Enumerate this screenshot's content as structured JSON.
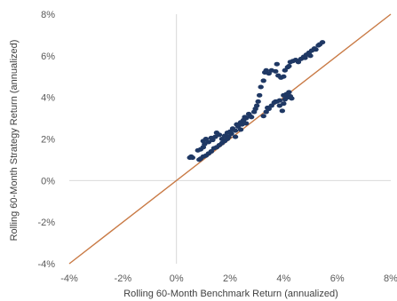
{
  "chart_data": {
    "type": "scatter",
    "title": "",
    "xlabel": "Rolling 60-Month Benchmark Return (annualized)",
    "ylabel": "Rolling 60-Month Strategy Return (annualized)",
    "xlim": [
      -4,
      8
    ],
    "ylim": [
      -4,
      8
    ],
    "x_ticks": [
      "-4%",
      "-2%",
      "0%",
      "2%",
      "4%",
      "6%",
      "8%"
    ],
    "y_ticks": [
      "-4%",
      "-2%",
      "0%",
      "2%",
      "4%",
      "6%",
      "8%"
    ],
    "grid": false,
    "legend": "none",
    "reference_line": {
      "from": [
        -4,
        -4
      ],
      "to": [
        8,
        8
      ],
      "color": "#C97A45"
    },
    "colors": {
      "points": "#1F3864",
      "reference_line": "#C97A45",
      "zero_axis": "#D9D9D9",
      "tick_text": "#595959"
    },
    "series": [
      {
        "points": [
          [
            0.5,
            1.1
          ],
          [
            0.55,
            1.15
          ],
          [
            0.6,
            1.1
          ],
          [
            0.8,
            1.45
          ],
          [
            0.9,
            1.5
          ],
          [
            1.0,
            1.6
          ],
          [
            1.05,
            1.75
          ],
          [
            0.85,
            1.0
          ],
          [
            0.9,
            1.05
          ],
          [
            1.0,
            1.15
          ],
          [
            1.1,
            1.2
          ],
          [
            1.2,
            1.3
          ],
          [
            1.3,
            1.4
          ],
          [
            1.4,
            1.55
          ],
          [
            1.5,
            1.6
          ],
          [
            1.6,
            1.7
          ],
          [
            1.7,
            1.8
          ],
          [
            1.8,
            1.9
          ],
          [
            1.9,
            2.0
          ],
          [
            1.0,
            1.9
          ],
          [
            1.1,
            2.0
          ],
          [
            1.2,
            1.85
          ],
          [
            1.3,
            2.05
          ],
          [
            1.35,
            1.95
          ],
          [
            1.45,
            2.1
          ],
          [
            1.5,
            2.3
          ],
          [
            1.6,
            2.2
          ],
          [
            1.7,
            2.0
          ],
          [
            1.8,
            2.15
          ],
          [
            1.9,
            2.3
          ],
          [
            1.95,
            2.1
          ],
          [
            2.0,
            2.35
          ],
          [
            2.05,
            2.25
          ],
          [
            2.1,
            2.5
          ],
          [
            2.2,
            2.4
          ],
          [
            2.25,
            2.7
          ],
          [
            2.3,
            2.6
          ],
          [
            2.4,
            2.8
          ],
          [
            2.45,
            2.7
          ],
          [
            2.5,
            2.9
          ],
          [
            2.55,
            3.05
          ],
          [
            2.6,
            3.0
          ],
          [
            2.7,
            3.2
          ],
          [
            2.75,
            3.1
          ],
          [
            2.2,
            2.1
          ],
          [
            2.4,
            2.45
          ],
          [
            2.6,
            2.75
          ],
          [
            2.8,
            3.05
          ],
          [
            2.9,
            3.3
          ],
          [
            2.95,
            3.45
          ],
          [
            3.0,
            3.6
          ],
          [
            3.05,
            3.8
          ],
          [
            3.1,
            4.1
          ],
          [
            3.15,
            4.5
          ],
          [
            3.25,
            4.8
          ],
          [
            3.3,
            5.2
          ],
          [
            3.35,
            5.3
          ],
          [
            3.45,
            5.15
          ],
          [
            3.55,
            5.3
          ],
          [
            3.7,
            5.25
          ],
          [
            3.75,
            5.6
          ],
          [
            3.8,
            5.05
          ],
          [
            3.9,
            4.95
          ],
          [
            4.0,
            5.0
          ],
          [
            4.05,
            5.3
          ],
          [
            4.15,
            5.45
          ],
          [
            4.2,
            5.5
          ],
          [
            3.25,
            3.1
          ],
          [
            3.35,
            3.3
          ],
          [
            3.4,
            3.5
          ],
          [
            3.45,
            3.45
          ],
          [
            3.55,
            3.6
          ],
          [
            3.65,
            3.75
          ],
          [
            3.75,
            3.8
          ],
          [
            3.85,
            3.6
          ],
          [
            3.95,
            3.35
          ],
          [
            4.0,
            3.7
          ],
          [
            4.05,
            3.9
          ],
          [
            4.15,
            4.0
          ],
          [
            4.25,
            4.05
          ],
          [
            4.3,
            3.95
          ],
          [
            3.7,
            3.8
          ],
          [
            3.85,
            3.85
          ],
          [
            4.0,
            4.1
          ],
          [
            4.1,
            4.15
          ],
          [
            4.2,
            4.25
          ],
          [
            4.25,
            5.7
          ],
          [
            4.35,
            5.75
          ],
          [
            4.45,
            5.8
          ],
          [
            4.55,
            5.7
          ],
          [
            4.65,
            5.85
          ],
          [
            4.75,
            5.95
          ],
          [
            4.8,
            5.9
          ],
          [
            4.85,
            6.05
          ],
          [
            4.95,
            6.15
          ],
          [
            5.0,
            6.0
          ],
          [
            5.05,
            6.25
          ],
          [
            5.15,
            6.35
          ],
          [
            5.2,
            6.3
          ],
          [
            5.3,
            6.5
          ],
          [
            5.35,
            6.55
          ],
          [
            5.45,
            6.65
          ]
        ]
      }
    ]
  }
}
